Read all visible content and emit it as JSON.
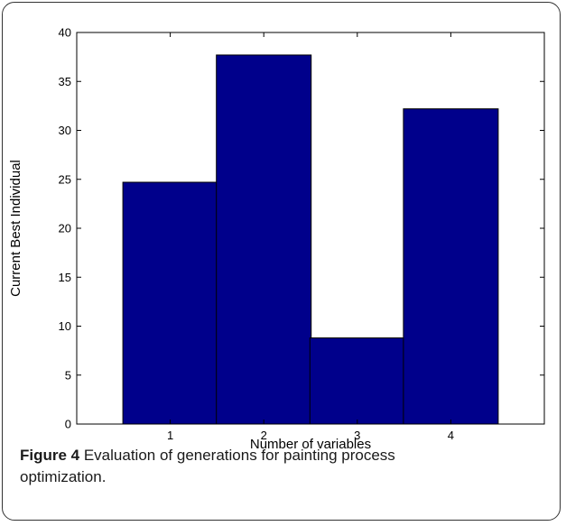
{
  "chart_data": {
    "type": "bar",
    "categories": [
      "1",
      "2",
      "3",
      "4"
    ],
    "values": [
      24.7,
      37.7,
      8.8,
      32.2
    ],
    "title": "",
    "xlabel": "Number of variables",
    "ylabel": "Current Best Individual",
    "ylim": [
      0,
      40
    ],
    "yticks": [
      0,
      5,
      10,
      15,
      20,
      25,
      30,
      35,
      40
    ],
    "grid": false,
    "bar_color": "#00008b"
  },
  "caption": {
    "label": "Figure 4",
    "text": " Evaluation of generations for painting process optimization."
  }
}
